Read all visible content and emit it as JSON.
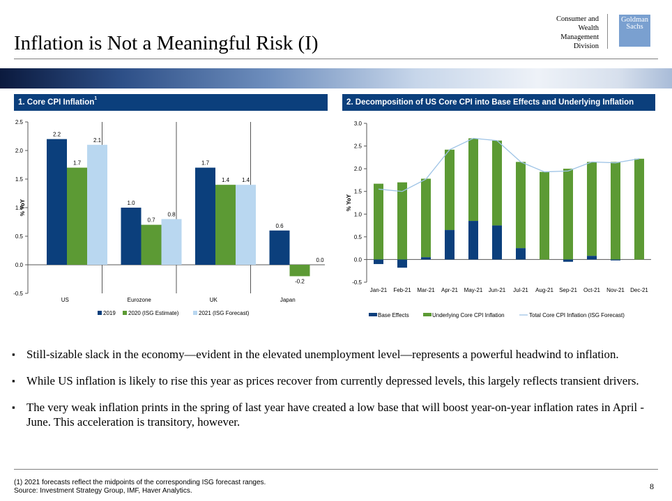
{
  "header": {
    "title": "Inflation is Not a Meaningful Risk (I)",
    "division": [
      "Consumer and",
      "Wealth",
      "Management",
      "Division"
    ],
    "logo": [
      "Goldman",
      "Sachs"
    ],
    "logo_color": "#7aa0d0"
  },
  "panel1": {
    "title": "1. Core CPI Inflation",
    "title_sup": "1"
  },
  "panel2": {
    "title": "2. Decomposition of US Core CPI into Base Effects and Underlying Inflation"
  },
  "chart_data": [
    {
      "type": "bar",
      "categories": [
        "US",
        "Eurozone",
        "UK",
        "Japan"
      ],
      "series": [
        {
          "name": "2019",
          "values": [
            2.2,
            1.0,
            1.7,
            0.6
          ],
          "color": "#0b3f7c"
        },
        {
          "name": "2020 (ISG Estimate)",
          "values": [
            1.7,
            0.7,
            1.4,
            -0.2
          ],
          "color": "#5c9a34"
        },
        {
          "name": "2021 (ISG Forecast)",
          "values": [
            2.1,
            0.8,
            1.4,
            0.0
          ],
          "color": "#b9d7f0"
        }
      ],
      "value_labels": [
        [
          "2.2",
          "1.7",
          "2.1"
        ],
        [
          "1.0",
          "0.7",
          "0.8"
        ],
        [
          "1.7",
          "1.4",
          "1.4"
        ],
        [
          "0.6",
          "-0.2",
          "0.0"
        ]
      ],
      "ylabel": "% YoY",
      "ylim": [
        -0.5,
        2.5
      ],
      "yticks": [
        "-0.5",
        "0.0",
        "0.5",
        "1.0",
        "1.5",
        "2.0",
        "2.5"
      ],
      "grid": false,
      "legend_position": "bottom"
    },
    {
      "type": "bar",
      "stacked": true,
      "categories": [
        "Jan-21",
        "Feb-21",
        "Mar-21",
        "Apr-21",
        "May-21",
        "Jun-21",
        "Jul-21",
        "Aug-21",
        "Sep-21",
        "Oct-21",
        "Nov-21",
        "Dec-21"
      ],
      "series": [
        {
          "name": "Base Effects",
          "kind": "bar",
          "values": [
            -0.1,
            -0.18,
            0.05,
            0.65,
            0.85,
            0.75,
            0.25,
            0.0,
            -0.05,
            0.08,
            -0.02,
            0.0
          ],
          "color": "#0b3f7c"
        },
        {
          "name": "Underlying Core CPI Inflation",
          "kind": "bar",
          "values": [
            1.67,
            1.7,
            1.73,
            1.77,
            1.82,
            1.87,
            1.9,
            1.93,
            2.0,
            2.07,
            2.15,
            2.22
          ],
          "color": "#5c9a34"
        },
        {
          "name": "Total Core CPI Inflation (ISG Forecast)",
          "kind": "line",
          "values": [
            1.55,
            1.5,
            1.77,
            2.42,
            2.67,
            2.62,
            2.15,
            1.93,
            1.95,
            2.15,
            2.13,
            2.22
          ],
          "color": "#9dc3e6"
        }
      ],
      "ylabel": "% YoY",
      "ylim": [
        -0.5,
        3.0
      ],
      "yticks": [
        "-0.5",
        "0.0",
        "0.5",
        "1.0",
        "1.5",
        "2.0",
        "2.5",
        "3.0"
      ],
      "grid": false,
      "legend_position": "bottom"
    }
  ],
  "bullets": [
    "Still-sizable slack in the economy—evident in the elevated unemployment level—represents a powerful headwind to inflation.",
    "While US inflation is likely to rise this year as prices recover from currently depressed levels, this largely reflects transient drivers.",
    "The very weak inflation prints in the spring of last year have created a low base that will boost year-on-year inflation rates in April - June. This acceleration is transitory, however."
  ],
  "footnote": {
    "note": "(1) 2021 forecasts reflect the midpoints of the corresponding ISG forecast ranges.",
    "source": "Source: Investment Strategy Group, IMF, Haver Analytics."
  },
  "page_number": "8"
}
